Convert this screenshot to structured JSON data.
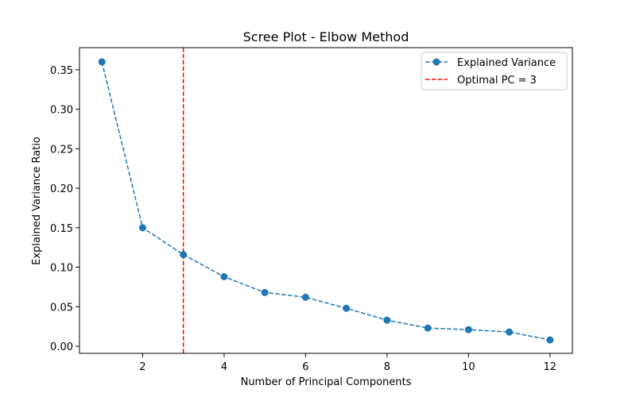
{
  "chart_data": {
    "type": "line",
    "title": "Scree Plot - Elbow Method",
    "xlabel": "Number of Principal Components",
    "ylabel": "Explained Variance Ratio",
    "xlim": [
      0.45,
      12.55
    ],
    "ylim": [
      -0.009,
      0.378
    ],
    "xticks": [
      2,
      4,
      6,
      8,
      10,
      12
    ],
    "yticks": [
      0.0,
      0.05,
      0.1,
      0.15,
      0.2,
      0.25,
      0.3,
      0.35
    ],
    "xtick_labels": [
      "2",
      "4",
      "6",
      "8",
      "10",
      "12"
    ],
    "ytick_labels": [
      "0.00",
      "0.05",
      "0.10",
      "0.15",
      "0.20",
      "0.25",
      "0.30",
      "0.35"
    ],
    "grid": false,
    "legend_position": "top-right",
    "x": [
      1,
      2,
      3,
      4,
      5,
      6,
      7,
      8,
      9,
      10,
      11,
      12
    ],
    "series": [
      {
        "name": "Explained Variance",
        "values": [
          0.36,
          0.15,
          0.116,
          0.088,
          0.068,
          0.062,
          0.048,
          0.033,
          0.023,
          0.021,
          0.018,
          0.008
        ],
        "color": "#1f77b4",
        "line_style": "dashed",
        "marker": "circle"
      }
    ],
    "vlines": [
      {
        "name": "Optimal PC = 3",
        "x": 3,
        "color": "#ff0000",
        "line_style": "dashed"
      }
    ]
  }
}
